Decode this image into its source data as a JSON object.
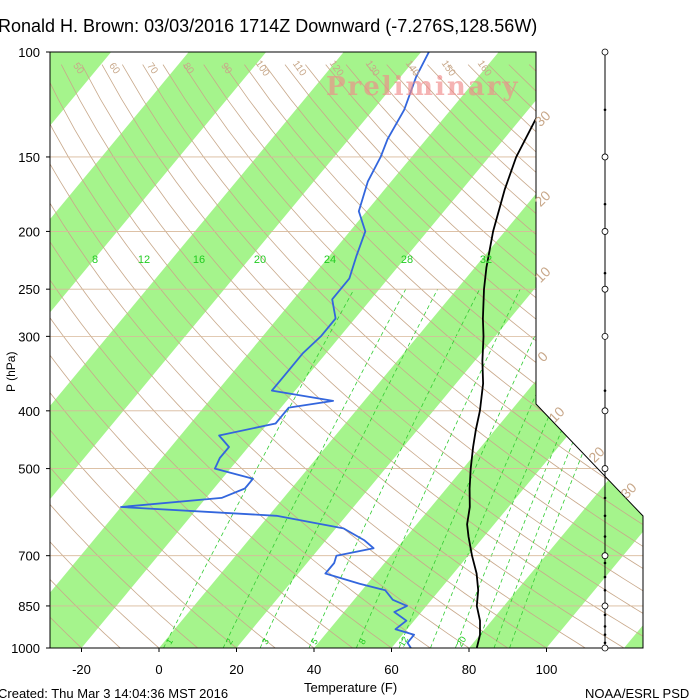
{
  "chart_data": {
    "type": "skew-t",
    "title": "Ronald H. Brown: 03/03/2016 1714Z Downward (-7.276S,128.56W)",
    "watermark": "Preliminary",
    "xlabel": "Temperature (F)",
    "ylabel": "P (hPa)",
    "footer_left": "Created: Thu Mar  3 14:04:36 MST 2016",
    "footer_right": "NOAA/ESRL PSD",
    "x_ticks": [
      -20,
      0,
      20,
      40,
      60,
      80,
      100
    ],
    "y_ticks": [
      100,
      150,
      200,
      250,
      300,
      400,
      500,
      700,
      850,
      1000
    ],
    "ylim": [
      1000,
      100
    ],
    "xlim": [
      -30,
      100
    ],
    "mixing_ratio_labels_top": [
      "8",
      "12",
      "16",
      "20",
      "24",
      "28",
      "32"
    ],
    "mixing_ratio_labels_bottom": [
      "1",
      "2",
      "3",
      "5",
      "8",
      "12",
      "20"
    ],
    "adiabat_labels_left": [
      "50",
      "60",
      "70",
      "80",
      "90",
      "100",
      "110",
      "120",
      "130",
      "140",
      "150",
      "160"
    ],
    "adiabat_labels_right": [
      "30",
      "20",
      "10",
      "0",
      "10",
      "20",
      "30"
    ],
    "colors": {
      "temperature": "#000000",
      "dewpoint": "#3366dd",
      "isotherm_band": "#a5f48c",
      "adiabat": "#c8a88a",
      "mixing_ratio": "#33cc33",
      "mixing_label": "#22cc22"
    },
    "series": [
      {
        "kind": "temperature",
        "points": [
          [
            100,
            -18
          ],
          [
            108,
            -17
          ],
          [
            118,
            -17.5
          ],
          [
            130,
            -16
          ],
          [
            150,
            -13
          ],
          [
            170,
            -9
          ],
          [
            200,
            -3
          ],
          [
            230,
            3
          ],
          [
            250,
            7
          ],
          [
            280,
            13
          ],
          [
            300,
            17
          ],
          [
            330,
            22
          ],
          [
            360,
            27
          ],
          [
            400,
            32
          ],
          [
            430,
            35
          ],
          [
            460,
            38
          ],
          [
            500,
            42
          ],
          [
            540,
            46
          ],
          [
            580,
            50
          ],
          [
            620,
            53
          ],
          [
            650,
            56
          ],
          [
            700,
            61
          ],
          [
            750,
            66
          ],
          [
            800,
            70
          ],
          [
            850,
            73
          ],
          [
            900,
            77
          ],
          [
            950,
            80
          ],
          [
            1000,
            82
          ]
        ]
      },
      {
        "kind": "dewpoint",
        "points": [
          [
            100,
            -58
          ],
          [
            110,
            -56
          ],
          [
            125,
            -52
          ],
          [
            140,
            -50
          ],
          [
            150,
            -48
          ],
          [
            165,
            -46
          ],
          [
            185,
            -42
          ],
          [
            200,
            -36
          ],
          [
            220,
            -33
          ],
          [
            240,
            -30
          ],
          [
            260,
            -30
          ],
          [
            280,
            -25
          ],
          [
            300,
            -25
          ],
          [
            320,
            -26
          ],
          [
            350,
            -26
          ],
          [
            370,
            -26
          ],
          [
            385,
            -8
          ],
          [
            395,
            -18
          ],
          [
            420,
            -18
          ],
          [
            440,
            -30
          ],
          [
            460,
            -25
          ],
          [
            480,
            -25
          ],
          [
            500,
            -24
          ],
          [
            520,
            -12
          ],
          [
            540,
            -12
          ],
          [
            560,
            -16
          ],
          [
            580,
            -40
          ],
          [
            600,
            2
          ],
          [
            630,
            22
          ],
          [
            660,
            30
          ],
          [
            680,
            34
          ],
          [
            700,
            26
          ],
          [
            720,
            27
          ],
          [
            750,
            27
          ],
          [
            780,
            38
          ],
          [
            800,
            46
          ],
          [
            830,
            50
          ],
          [
            850,
            55
          ],
          [
            870,
            53
          ],
          [
            900,
            58
          ],
          [
            930,
            57
          ],
          [
            950,
            63
          ],
          [
            980,
            63
          ],
          [
            1000,
            65
          ]
        ]
      }
    ],
    "wind_barbs_pressures": [
      100,
      125,
      150,
      180,
      200,
      235,
      250,
      300,
      370,
      400,
      500,
      560,
      600,
      650,
      700,
      720,
      760,
      800,
      850,
      880,
      920,
      950,
      980,
      1000
    ]
  }
}
